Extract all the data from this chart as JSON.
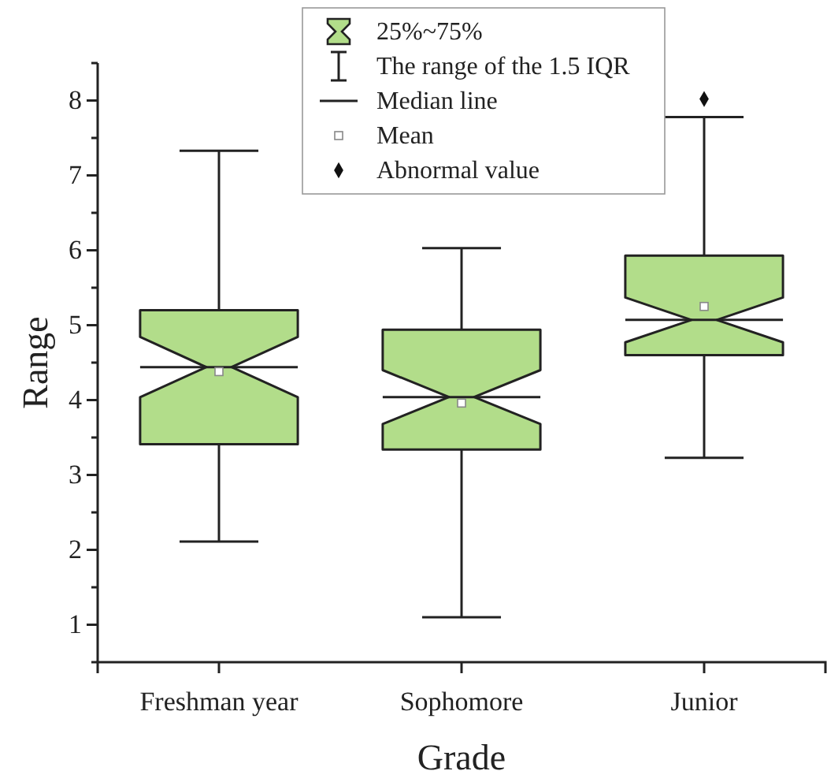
{
  "chart_data": {
    "type": "box",
    "xlabel": "Grade",
    "ylabel": "Range",
    "categories": [
      "Freshman year",
      "Sophomore",
      "Junior"
    ],
    "series": [
      {
        "name": "25%~75%",
        "color": "#b2dd8a",
        "boxes": [
          {
            "low": 2.11,
            "q1": 3.41,
            "median": 4.44,
            "q3": 5.2,
            "high": 7.33,
            "mean": 4.38
          },
          {
            "low": 1.1,
            "q1": 3.34,
            "median": 4.04,
            "q3": 4.94,
            "high": 6.03,
            "mean": 3.96
          },
          {
            "low": 3.23,
            "q1": 4.6,
            "median": 5.07,
            "q3": 5.93,
            "high": 7.78,
            "mean": 5.25,
            "outliers": [
              8.02
            ]
          }
        ]
      }
    ],
    "annotations": [
      "The range of the 1.5 IQR",
      "Median line",
      "Mean",
      "Abnormal value"
    ],
    "ylim": [
      0.5,
      8.5
    ],
    "yticks": [
      {
        "value": 0.5,
        "label": null
      },
      1,
      {
        "value": 1.5,
        "label": null
      },
      2,
      {
        "value": 2.5,
        "label": null
      },
      3,
      {
        "value": 3.5,
        "label": null
      },
      4,
      {
        "value": 4.5,
        "label": null
      },
      5,
      {
        "value": 5.5,
        "label": null
      },
      6,
      {
        "value": 6.5,
        "label": null
      },
      7,
      {
        "value": 7.5,
        "label": null
      },
      8,
      {
        "value": 8.5,
        "label": null
      }
    ],
    "legend": "top",
    "grid": false
  }
}
